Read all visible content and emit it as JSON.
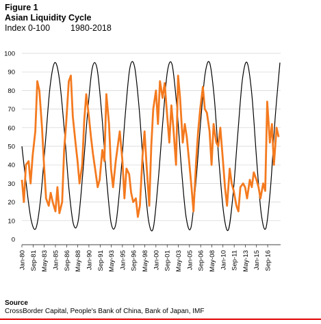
{
  "figure_label": "Figure 1",
  "title": "Asian Liquidity Cycle",
  "subtitle_index": "Index 0-100",
  "subtitle_range": "1980-2018",
  "source_label": "Source",
  "source_text": "CrossBorder Capital, People's Bank of China, Bank of Japan, IMF",
  "colors": {
    "cycle_line": "#000000",
    "liquidity_line": "#f47a1f",
    "grid": "#d0d0d0",
    "rule": "#e00000"
  },
  "chart_data": {
    "type": "line",
    "title": "Asian Liquidity Cycle",
    "xlabel": "",
    "ylabel": "",
    "ylim": [
      0,
      100
    ],
    "yticks": [
      0,
      10,
      20,
      30,
      40,
      50,
      60,
      70,
      80,
      90,
      100
    ],
    "xlim": [
      1980.0,
      2018.6
    ],
    "xtick_labels": [
      "Jan-80",
      "Sep-81",
      "May-83",
      "Jan-85",
      "Sep-86",
      "May-88",
      "Jan-90",
      "Sep-91",
      "May-93",
      "Jan-95",
      "Sep-96",
      "May-98",
      "Jan-00",
      "Sep-01",
      "May-03",
      "Jan-05",
      "Sep-06",
      "May-08",
      "Jan-10",
      "Sep-11",
      "May-13",
      "Jan-15",
      "Sep-16"
    ],
    "xtick_positions": [
      1980.0,
      1981.67,
      1983.33,
      1985.0,
      1986.67,
      1988.33,
      1990.0,
      1991.67,
      1993.33,
      1995.0,
      1996.67,
      1998.33,
      2000.0,
      2001.67,
      2003.33,
      2005.0,
      2006.67,
      2008.33,
      2010.0,
      2011.67,
      2013.33,
      2015.0,
      2016.67
    ],
    "grid": "horizontal",
    "series": [
      {
        "x": [
          1980.0,
          1980.7,
          1981.4,
          1982.1,
          1982.8,
          1983.5,
          1984.2,
          1984.9,
          1985.6,
          1986.3,
          1987.0,
          1987.7,
          1988.4,
          1989.1,
          1989.8,
          1990.5,
          1991.2,
          1991.9,
          1992.6,
          1993.3,
          1994.0,
          1994.7,
          1995.4,
          1996.1,
          1996.8,
          1997.5,
          1998.2,
          1998.9,
          1999.6,
          2000.3,
          2001.0,
          2001.7,
          2002.4,
          2003.1,
          2003.8,
          2004.5,
          2005.2,
          2005.9,
          2006.6,
          2007.3,
          2008.0,
          2008.7,
          2009.4,
          2010.1,
          2010.8,
          2011.5,
          2012.2,
          2012.9,
          2013.6,
          2014.3,
          2015.0,
          2015.7,
          2016.4,
          2017.1,
          2017.8,
          2018.5
        ],
        "values": [
          50,
          28,
          10,
          6,
          22,
          52,
          82,
          95,
          86,
          60,
          28,
          8,
          10,
          36,
          68,
          92,
          92,
          68,
          34,
          9,
          8,
          32,
          66,
          92,
          93,
          70,
          36,
          10,
          6,
          30,
          62,
          90,
          94,
          72,
          38,
          12,
          6,
          28,
          60,
          88,
          95,
          76,
          42,
          14,
          5,
          24,
          56,
          86,
          95,
          78,
          44,
          14,
          6,
          28,
          66,
          95
        ]
      },
      {
        "x": [
          1980.0,
          1980.3,
          1980.6,
          1981.0,
          1981.3,
          1981.6,
          1982.0,
          1982.3,
          1982.6,
          1983.0,
          1983.3,
          1983.6,
          1984.0,
          1984.3,
          1984.6,
          1985.0,
          1985.3,
          1985.6,
          1986.0,
          1986.3,
          1986.6,
          1987.0,
          1987.3,
          1987.6,
          1988.0,
          1988.3,
          1988.6,
          1989.0,
          1989.3,
          1989.6,
          1990.0,
          1990.3,
          1990.6,
          1991.0,
          1991.3,
          1991.6,
          1992.0,
          1992.3,
          1992.6,
          1993.0,
          1993.3,
          1993.6,
          1994.0,
          1994.3,
          1994.6,
          1995.0,
          1995.3,
          1995.6,
          1996.0,
          1996.3,
          1996.6,
          1997.0,
          1997.3,
          1997.6,
          1998.0,
          1998.3,
          1998.6,
          1999.0,
          1999.3,
          1999.6,
          2000.0,
          2000.3,
          2000.6,
          2001.0,
          2001.3,
          2001.6,
          2002.0,
          2002.3,
          2002.6,
          2003.0,
          2003.3,
          2003.6,
          2004.0,
          2004.3,
          2004.6,
          2005.0,
          2005.3,
          2005.6,
          2006.0,
          2006.3,
          2006.6,
          2007.0,
          2007.3,
          2007.6,
          2008.0,
          2008.3,
          2008.6,
          2009.0,
          2009.3,
          2009.6,
          2010.0,
          2010.3,
          2010.6,
          2011.0,
          2011.3,
          2011.6,
          2012.0,
          2012.3,
          2012.6,
          2013.0,
          2013.3,
          2013.6,
          2014.0,
          2014.3,
          2014.6,
          2015.0,
          2015.3,
          2015.6,
          2016.0,
          2016.3,
          2016.6,
          2017.0,
          2017.3,
          2017.6,
          2018.0,
          2018.3
        ],
        "values": [
          32,
          20,
          40,
          42,
          30,
          45,
          58,
          85,
          80,
          60,
          40,
          22,
          18,
          25,
          20,
          15,
          28,
          14,
          20,
          48,
          62,
          85,
          88,
          66,
          52,
          42,
          30,
          40,
          64,
          78,
          66,
          55,
          46,
          36,
          28,
          32,
          48,
          42,
          78,
          62,
          38,
          28,
          42,
          50,
          58,
          42,
          22,
          38,
          35,
          25,
          20,
          22,
          12,
          18,
          45,
          58,
          40,
          18,
          50,
          70,
          80,
          62,
          85,
          76,
          84,
          70,
          52,
          72,
          60,
          40,
          88,
          76,
          52,
          62,
          55,
          40,
          28,
          15,
          42,
          58,
          70,
          82,
          70,
          68,
          58,
          40,
          62,
          52,
          50,
          60,
          42,
          28,
          18,
          38,
          30,
          26,
          18,
          15,
          28,
          30,
          28,
          22,
          32,
          28,
          36,
          32,
          28,
          22,
          30,
          26,
          74,
          52,
          62,
          40,
          60,
          55
        ]
      }
    ]
  }
}
